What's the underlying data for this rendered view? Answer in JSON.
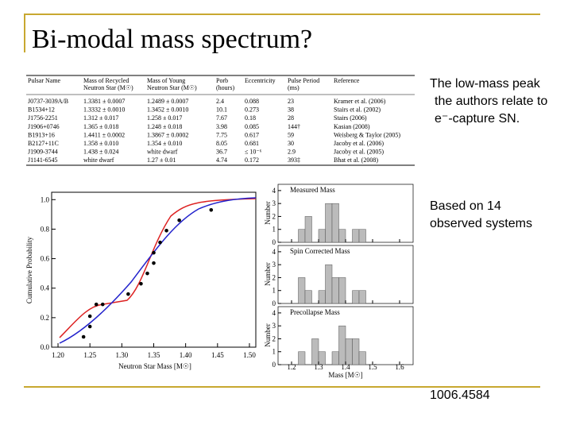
{
  "header": {
    "title": "Bi-modal mass spectrum?"
  },
  "table": {
    "columns": [
      [
        "Pulsar Name"
      ],
      [
        "Mass of Recycled",
        "Neutron Star (M☉)"
      ],
      [
        "Mass of Young",
        "Neutron Star (M☉)"
      ],
      [
        "Porb",
        "(hours)"
      ],
      [
        "Eccentricity"
      ],
      [
        "Pulse Period",
        "(ms)"
      ],
      [
        "Reference"
      ]
    ],
    "rows": [
      [
        "J0737-3039A/B",
        "1.3381 ± 0.0007",
        "1.2489 ± 0.0007",
        "2.4",
        "0.088",
        "23",
        "Kramer et al. (2006)"
      ],
      [
        "B1534+12",
        "1.3332 ± 0.0010",
        "1.3452 ± 0.0010",
        "10.1",
        "0.273",
        "38",
        "Stairs et al. (2002)"
      ],
      [
        "J1756-2251",
        "1.312 ± 0.017",
        "1.258 ± 0.017",
        "7.67",
        "0.18",
        "28",
        "Stairs (2006)"
      ],
      [
        "J1906+0746",
        "1.365 ± 0.018",
        "1.248 ± 0.018",
        "3.98",
        "0.085",
        "144†",
        "Kasian (2008)"
      ],
      [
        "B1913+16",
        "1.4411 ± 0.0002",
        "1.3867 ± 0.0002",
        "7.75",
        "0.617",
        "59",
        "Weisberg & Taylor (2005)"
      ],
      [
        "B2127+11C",
        "1.358 ± 0.010",
        "1.354 ± 0.010",
        "8.05",
        "0.681",
        "30",
        "Jacoby et al. (2006)"
      ],
      [
        "J1909-3744",
        "1.438 ± 0.024",
        "white dwarf",
        "36.7",
        "≤ 10⁻⁶",
        "2.9",
        "Jacoby et al. (2005)"
      ],
      [
        "J1141-6545",
        "white dwarf",
        "1.27 ± 0.01",
        "4.74",
        "0.172",
        "393‡",
        "Bhat et al. (2008)"
      ]
    ]
  },
  "cdf_plot": {
    "ylabel": "Cumulative Probability",
    "xlabel": "Neutron Star Mass [M☉]",
    "xlim": [
      1.19,
      1.51
    ],
    "ylim": [
      0,
      1.05
    ],
    "xticks": [
      {
        "value": 1.2,
        "label": "1.20"
      },
      {
        "value": 1.25,
        "label": "1.25"
      },
      {
        "value": 1.3,
        "label": "1.30"
      },
      {
        "value": 1.35,
        "label": "1.35"
      },
      {
        "value": 1.4,
        "label": "1.40"
      },
      {
        "value": 1.45,
        "label": "1.45"
      },
      {
        "value": 1.5,
        "label": "1.50"
      }
    ],
    "yticks": [
      {
        "value": 0,
        "label": "0.0"
      },
      0.2,
      0.4,
      0.6,
      0.8,
      {
        "value": 1,
        "label": "1.0"
      }
    ],
    "points": {
      "x": [
        1.24,
        1.25,
        1.25,
        1.26,
        1.27,
        1.31,
        1.33,
        1.34,
        1.35,
        1.35,
        1.36,
        1.37,
        1.39,
        1.44
      ],
      "y": [
        0.07,
        0.14,
        0.21,
        0.29,
        0.29,
        0.36,
        0.43,
        0.5,
        0.57,
        0.64,
        0.71,
        0.79,
        0.86,
        0.93
      ]
    }
  },
  "histogram": {
    "xlabel": "Mass [M☉]",
    "ylabel": "Number",
    "xlim": [
      1.15,
      1.65
    ],
    "ylim": [
      0,
      4.3
    ],
    "xticks": [
      1.2,
      1.3,
      1.4,
      1.5,
      1.6
    ],
    "yticks": [
      0,
      1,
      2,
      3,
      4
    ],
    "bins": [
      1.225,
      1.25,
      1.275,
      1.3,
      1.325,
      1.35,
      1.375,
      1.4,
      1.425,
      1.45,
      1.475
    ],
    "panels": [
      {
        "label": "Measured Mass",
        "counts": [
          1,
          2,
          0,
          1,
          3,
          3,
          1,
          0,
          1,
          1
        ]
      },
      {
        "label": "Spin Corrected Mass",
        "counts": [
          2,
          1,
          0,
          1,
          3,
          2,
          2,
          0,
          1,
          1
        ]
      },
      {
        "label": "Precollapse Mass",
        "counts": [
          1,
          0,
          2,
          1,
          0,
          1,
          3,
          2,
          2,
          1
        ]
      }
    ]
  },
  "notes": [
    {
      "lines": [
        "The low-mass peak",
        "the authors relate to",
        "e⁻-capture SN."
      ]
    },
    {
      "lines": [
        "Based on 14",
        "observed systems"
      ]
    }
  ],
  "reference": "1006.4584"
}
